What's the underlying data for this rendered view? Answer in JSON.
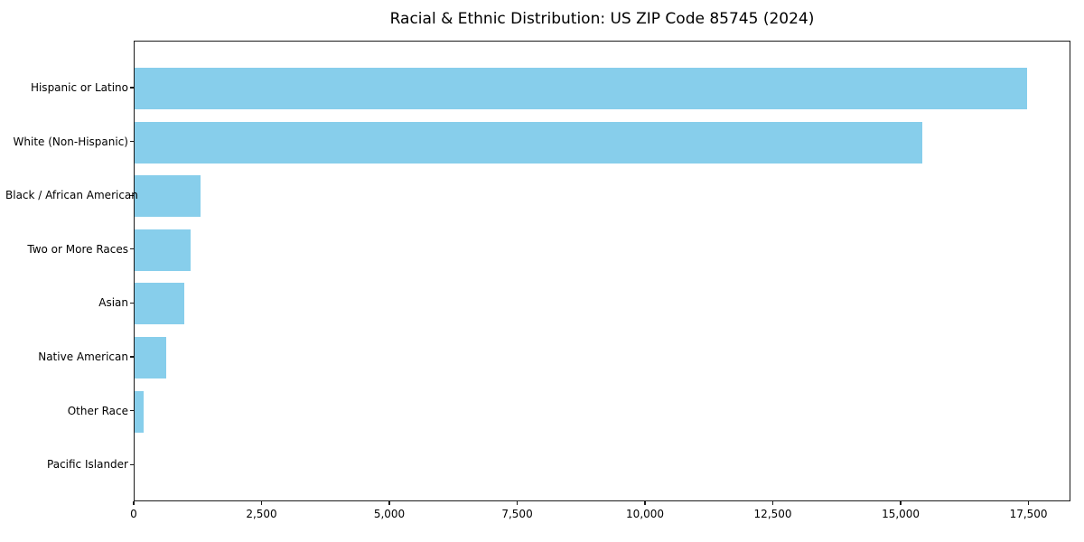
{
  "chart_data": {
    "type": "bar",
    "orientation": "horizontal",
    "title": "Racial & Ethnic Distribution: US ZIP Code 85745 (2024)",
    "categories": [
      "Hispanic or Latino",
      "White (Non-Hispanic)",
      "Black / African American",
      "Two or More Races",
      "Asian",
      "Native American",
      "Other Race",
      "Pacific Islander"
    ],
    "values": [
      17450,
      15410,
      1290,
      1100,
      970,
      620,
      180,
      0
    ],
    "xlabel": "",
    "ylabel": "",
    "xlim": [
      0,
      18320
    ],
    "x_ticks": [
      0,
      2500,
      5000,
      7500,
      10000,
      12500,
      15000,
      17500
    ],
    "x_tick_labels": [
      "0",
      "2,500",
      "5,000",
      "7,500",
      "10,000",
      "12,500",
      "15,000",
      "17,500"
    ],
    "bar_color": "#87CEEB",
    "axis_color": "#1a1a1a",
    "text_color": "#000000",
    "background": "#ffffff",
    "grid": false,
    "legend": null
  }
}
